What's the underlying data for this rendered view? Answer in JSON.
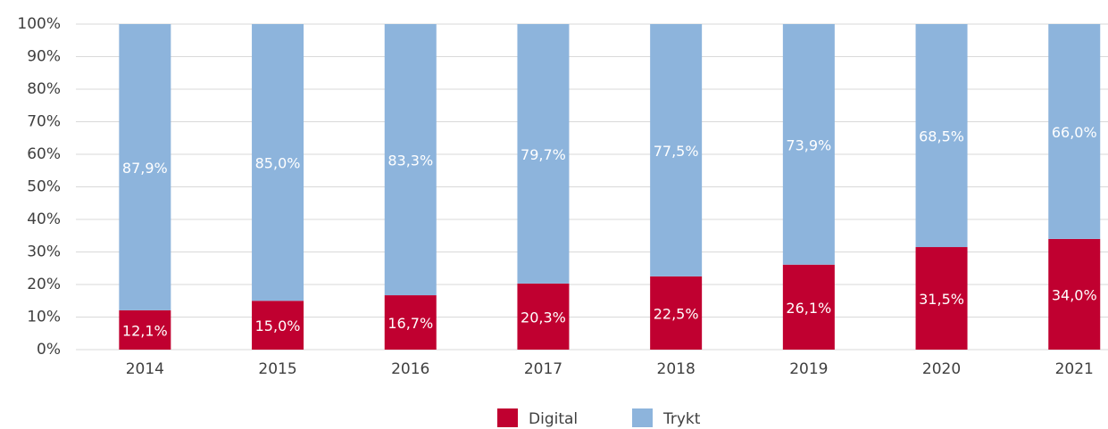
{
  "chart_data": {
    "type": "stacked_bar",
    "categories": [
      "2014",
      "2015",
      "2016",
      "2017",
      "2018",
      "2019",
      "2020",
      "2021"
    ],
    "series": [
      {
        "name": "Digital",
        "color": "#c00030",
        "values": [
          12.1,
          15.0,
          16.7,
          20.3,
          22.5,
          26.1,
          31.5,
          34.0
        ],
        "value_labels": [
          "12,1%",
          "15,0%",
          "16,7%",
          "20,3%",
          "22,5%",
          "26,1%",
          "31,5%",
          "34,0%"
        ]
      },
      {
        "name": "Trykt",
        "color": "#8db4dc",
        "values": [
          87.9,
          85.0,
          83.3,
          79.7,
          77.5,
          73.9,
          68.5,
          66.0
        ],
        "value_labels": [
          "87,9%",
          "85,0%",
          "83,3%",
          "79,7%",
          "77,5%",
          "73,9%",
          "68,5%",
          "66,0%"
        ]
      }
    ],
    "ylim": [
      0,
      100
    ],
    "yticks": [
      {
        "value": 0,
        "label": "0%"
      },
      {
        "value": 10,
        "label": "10%"
      },
      {
        "value": 20,
        "label": "20%"
      },
      {
        "value": 30,
        "label": "30%"
      },
      {
        "value": 40,
        "label": "40%"
      },
      {
        "value": 50,
        "label": "50%"
      },
      {
        "value": 60,
        "label": "60%"
      },
      {
        "value": 70,
        "label": "70%"
      },
      {
        "value": 80,
        "label": "80%"
      },
      {
        "value": 90,
        "label": "90%"
      },
      {
        "value": 100,
        "label": "100%"
      }
    ],
    "grid": true,
    "legend": "bottom"
  }
}
